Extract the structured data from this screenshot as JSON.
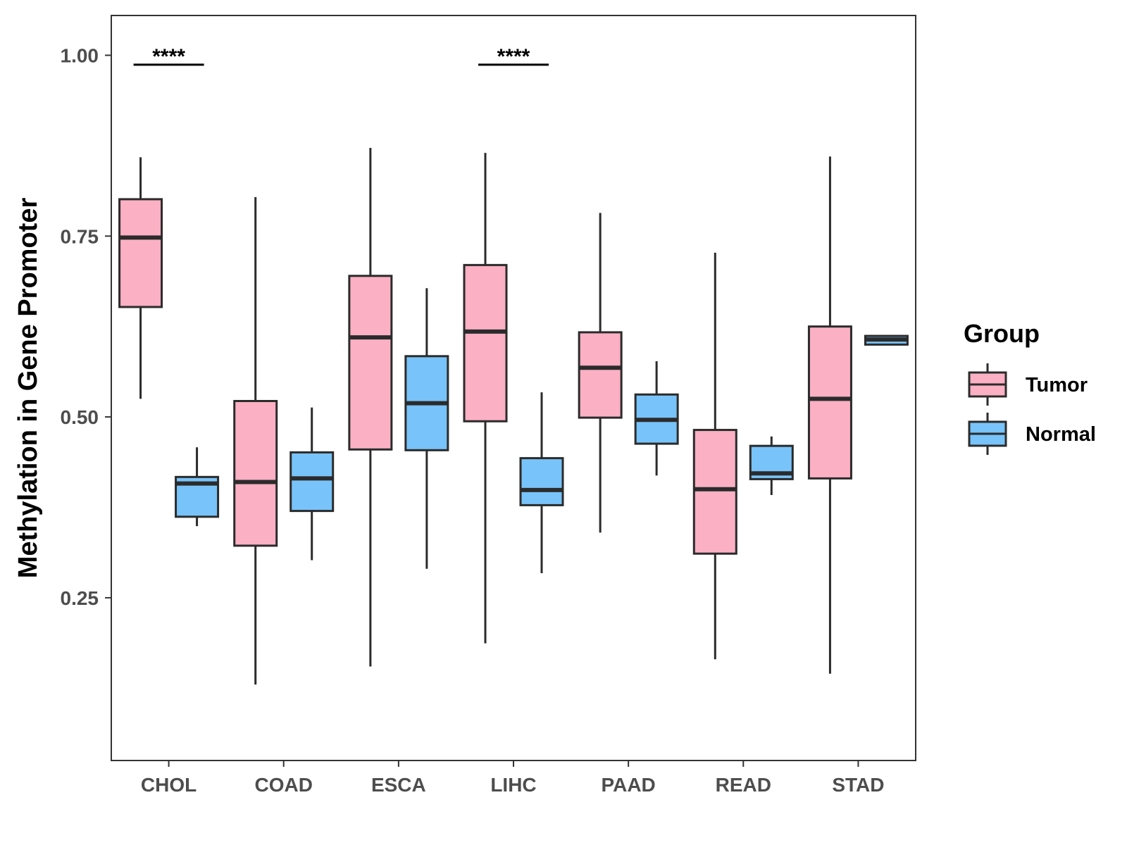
{
  "chart_data": {
    "type": "boxplot",
    "title": "",
    "xlabel": "",
    "ylabel": "Methylation in Gene Promoter",
    "ylim": [
      0.025,
      1.055
    ],
    "y_ticks": [
      0.25,
      0.5,
      0.75,
      1.0
    ],
    "y_tick_labels": [
      "0.25",
      "0.50",
      "0.75",
      "1.00"
    ],
    "grid": false,
    "categories": [
      "CHOL",
      "COAD",
      "ESCA",
      "LIHC",
      "PAAD",
      "READ",
      "STAD"
    ],
    "legend": {
      "title": "Group",
      "position": "right",
      "entries": [
        {
          "label": "Tumor",
          "color": "#FBB0C4"
        },
        {
          "label": "Normal",
          "color": "#78C3F9"
        }
      ]
    },
    "series": [
      {
        "name": "Tumor",
        "color": "#FBB0C4",
        "boxes": [
          {
            "category": "CHOL",
            "whisker_low": 0.525,
            "q1": 0.652,
            "median": 0.748,
            "q3": 0.801,
            "whisker_high": 0.859
          },
          {
            "category": "COAD",
            "whisker_low": 0.13,
            "q1": 0.322,
            "median": 0.41,
            "q3": 0.522,
            "whisker_high": 0.804
          },
          {
            "category": "ESCA",
            "whisker_low": 0.155,
            "q1": 0.455,
            "median": 0.61,
            "q3": 0.695,
            "whisker_high": 0.872
          },
          {
            "category": "LIHC",
            "whisker_low": 0.187,
            "q1": 0.494,
            "median": 0.618,
            "q3": 0.71,
            "whisker_high": 0.865
          },
          {
            "category": "PAAD",
            "whisker_low": 0.34,
            "q1": 0.499,
            "median": 0.568,
            "q3": 0.617,
            "whisker_high": 0.782
          },
          {
            "category": "READ",
            "whisker_low": 0.165,
            "q1": 0.311,
            "median": 0.4,
            "q3": 0.482,
            "whisker_high": 0.727
          },
          {
            "category": "STAD",
            "whisker_low": 0.145,
            "q1": 0.415,
            "median": 0.525,
            "q3": 0.625,
            "whisker_high": 0.86
          }
        ]
      },
      {
        "name": "Normal",
        "color": "#78C3F9",
        "boxes": [
          {
            "category": "CHOL",
            "whisker_low": 0.349,
            "q1": 0.362,
            "median": 0.408,
            "q3": 0.417,
            "whisker_high": 0.458
          },
          {
            "category": "COAD",
            "whisker_low": 0.302,
            "q1": 0.37,
            "median": 0.415,
            "q3": 0.451,
            "whisker_high": 0.513
          },
          {
            "category": "ESCA",
            "whisker_low": 0.29,
            "q1": 0.454,
            "median": 0.519,
            "q3": 0.584,
            "whisker_high": 0.678
          },
          {
            "category": "LIHC",
            "whisker_low": 0.284,
            "q1": 0.378,
            "median": 0.399,
            "q3": 0.443,
            "whisker_high": 0.534
          },
          {
            "category": "PAAD",
            "whisker_low": 0.419,
            "q1": 0.463,
            "median": 0.496,
            "q3": 0.531,
            "whisker_high": 0.577
          },
          {
            "category": "READ",
            "whisker_low": 0.392,
            "q1": 0.414,
            "median": 0.422,
            "q3": 0.46,
            "whisker_high": 0.473
          },
          {
            "category": "STAD",
            "whisker_low": 0.6,
            "q1": 0.6,
            "median": 0.607,
            "q3": 0.612,
            "whisker_high": 0.612
          }
        ]
      }
    ],
    "annotations": [
      {
        "category": "CHOL",
        "text": "****",
        "y": 0.987
      },
      {
        "category": "LIHC",
        "text": "****",
        "y": 0.987
      }
    ]
  }
}
